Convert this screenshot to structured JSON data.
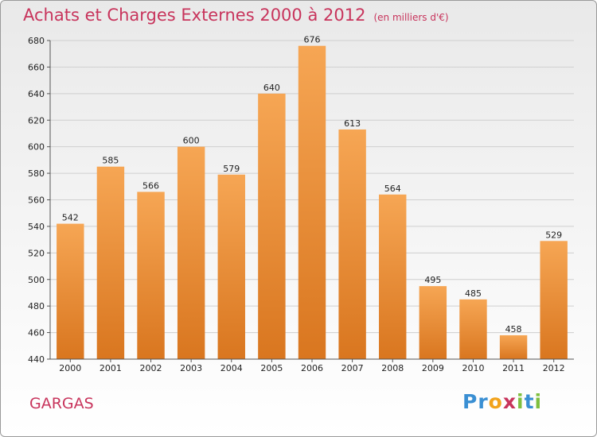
{
  "title": "Achats et Charges Externes 2000 à 2012",
  "unit": "(en milliers d'€)",
  "city": "GARGAS",
  "logo": {
    "letters": [
      "P",
      "r",
      "o",
      "x",
      "i",
      "t",
      "i"
    ],
    "colors": [
      "#3a8fd3",
      "#3a8fd3",
      "#f2a31c",
      "#c8345c",
      "#7fbf3f",
      "#3a8fd3",
      "#7fbf3f"
    ]
  },
  "chart_data": {
    "type": "bar",
    "categories": [
      "2000",
      "2001",
      "2002",
      "2003",
      "2004",
      "2005",
      "2006",
      "2007",
      "2008",
      "2009",
      "2010",
      "2011",
      "2012"
    ],
    "values": [
      542,
      585,
      566,
      600,
      579,
      640,
      676,
      613,
      564,
      495,
      485,
      458,
      529
    ],
    "ylim": [
      440,
      680
    ],
    "yticks": [
      440,
      460,
      480,
      500,
      520,
      540,
      560,
      580,
      600,
      620,
      640,
      660,
      680
    ],
    "grid": true,
    "bar_color_top": "#f6a654",
    "bar_color_bottom": "#d9761f"
  }
}
